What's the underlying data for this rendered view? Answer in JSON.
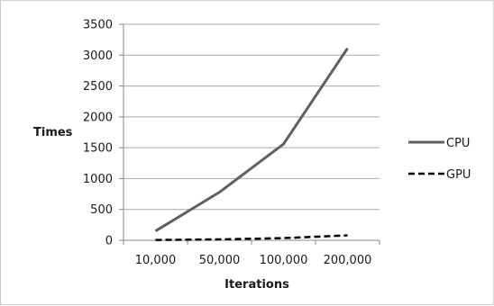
{
  "chart_data": {
    "type": "line",
    "title": "",
    "xlabel": "Iterations",
    "ylabel": "Times",
    "categories": [
      "10,000",
      "50,000",
      "100,000",
      "200,000"
    ],
    "ylim": [
      0,
      3500
    ],
    "yticks": [
      0,
      500,
      1000,
      1500,
      2000,
      2500,
      3000,
      3500
    ],
    "grid": true,
    "legend": "right",
    "series": [
      {
        "name": "CPU",
        "values": [
          150,
          780,
          1560,
          3110
        ],
        "color": "#606060",
        "style": "solid"
      },
      {
        "name": "GPU",
        "values": [
          5,
          15,
          35,
          80
        ],
        "color": "#000000",
        "style": "dashed"
      }
    ]
  }
}
